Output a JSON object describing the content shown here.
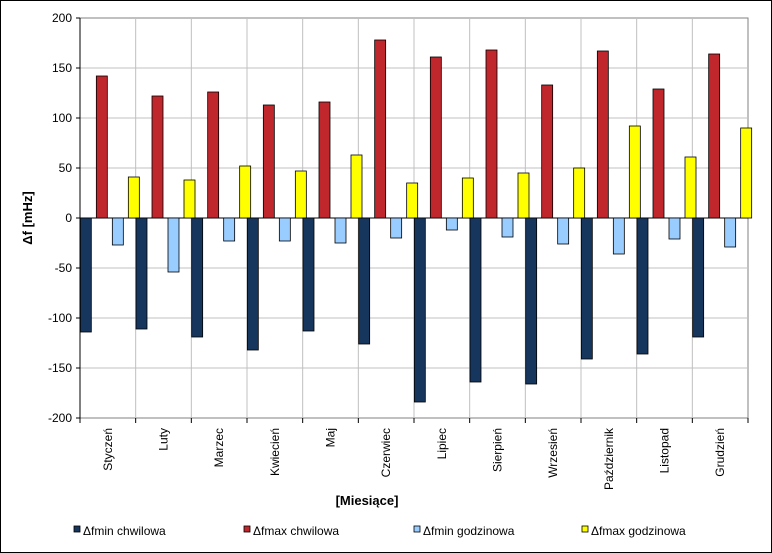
{
  "chart_data": {
    "type": "bar",
    "title": "",
    "xlabel": "[Miesiące]",
    "ylabel": "Δf [mHz]",
    "ylim": [
      -200,
      200
    ],
    "ytick_step": 50,
    "grid": true,
    "legend_position": "bottom",
    "categories": [
      "Styczeń",
      "Luty",
      "Marzec",
      "Kwiecień",
      "Maj",
      "Czerwiec",
      "Lipiec",
      "Sierpień",
      "Wrzesień",
      "Październik",
      "Listopad",
      "Grudzień"
    ],
    "series": [
      {
        "name": "Δfmin  chwilowa",
        "color": "#17365D",
        "values": [
          -114,
          -111,
          -119,
          -132,
          -113,
          -126,
          -184,
          -164,
          -166,
          -141,
          -136,
          -119
        ]
      },
      {
        "name": "Δfmax chwilowa",
        "color": "#C0272D",
        "values": [
          142,
          122,
          126,
          113,
          116,
          178,
          161,
          168,
          133,
          167,
          129,
          164
        ]
      },
      {
        "name": "Δfmin  godzinowa",
        "color": "#99CCFF",
        "values": [
          -27,
          -54,
          -23,
          -23,
          -25,
          -20,
          -12,
          -19,
          -26,
          -36,
          -21,
          -29
        ]
      },
      {
        "name": "Δfmax  godzinowa",
        "color": "#FFFF00",
        "values": [
          41,
          38,
          52,
          47,
          63,
          35,
          40,
          45,
          50,
          92,
          61,
          90
        ]
      }
    ]
  }
}
